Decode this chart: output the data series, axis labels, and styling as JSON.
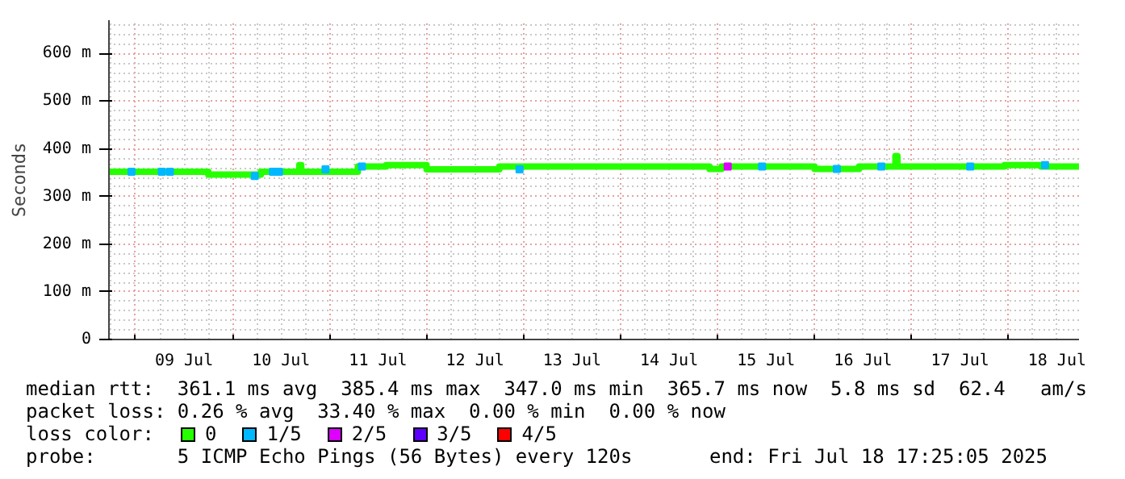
{
  "chart_data": {
    "type": "step",
    "ylabel": "Seconds",
    "legend_title": "loss color:",
    "legend": "bottom",
    "grid": true,
    "xlim": [
      "2025-07-08T17:25",
      "2025-07-18T17:25"
    ],
    "xticks": [
      {
        "value": "2025-07-09T12:00",
        "label": "09 Jul"
      },
      {
        "value": "2025-07-10T12:00",
        "label": "10 Jul"
      },
      {
        "value": "2025-07-11T12:00",
        "label": "11 Jul"
      },
      {
        "value": "2025-07-12T12:00",
        "label": "12 Jul"
      },
      {
        "value": "2025-07-13T12:00",
        "label": "13 Jul"
      },
      {
        "value": "2025-07-14T12:00",
        "label": "14 Jul"
      },
      {
        "value": "2025-07-15T12:00",
        "label": "15 Jul"
      },
      {
        "value": "2025-07-16T12:00",
        "label": "16 Jul"
      },
      {
        "value": "2025-07-17T12:00",
        "label": "17 Jul"
      },
      {
        "value": "2025-07-18T12:00",
        "label": "18 Jul"
      }
    ],
    "ylim": [
      0,
      670
    ],
    "yticks": [
      0,
      {
        "value": 100,
        "label": "100 m"
      },
      {
        "value": 200,
        "label": "200 m"
      },
      {
        "value": 300,
        "label": "300 m"
      },
      {
        "value": 400,
        "label": "400 m"
      },
      {
        "value": 500,
        "label": "500 m"
      },
      {
        "value": 600,
        "label": "600 m"
      }
    ],
    "series": [
      {
        "name": "0",
        "color": "#26ff00",
        "x": [
          "2025-07-08T17:25",
          "2025-07-09T18:00",
          "2025-07-10T07:00",
          "2025-07-10T16:30",
          "2025-07-10T17:00",
          "2025-07-11T07:00",
          "2025-07-11T14:00",
          "2025-07-12T00:00",
          "2025-07-12T18:00",
          "2025-07-14T22:00",
          "2025-07-15T01:00",
          "2025-07-16T00:00",
          "2025-07-16T11:00",
          "2025-07-16T20:00",
          "2025-07-16T20:30",
          "2025-07-17T23:00",
          "2025-07-18T08:00",
          "2025-07-18T17:25"
        ],
        "values": [
          352,
          346,
          352,
          366,
          352,
          363,
          366,
          357,
          363,
          358,
          363,
          358,
          363,
          385,
          363,
          366,
          363,
          363
        ]
      },
      {
        "name": "1/5",
        "type": "scatter",
        "marker": "square",
        "color": "#00b8ff",
        "x": [
          "2025-07-08T23:00",
          "2025-07-09T06:30",
          "2025-07-09T08:30",
          "2025-07-10T05:30",
          "2025-07-10T10:00",
          "2025-07-10T11:30",
          "2025-07-10T23:00",
          "2025-07-11T08:00",
          "2025-07-12T23:00",
          "2025-07-15T11:00",
          "2025-07-16T05:30",
          "2025-07-16T16:30",
          "2025-07-17T14:30",
          "2025-07-18T09:00"
        ],
        "values": [
          352,
          352,
          352,
          343,
          352,
          352,
          357,
          363,
          357,
          363,
          358,
          363,
          363,
          366
        ]
      },
      {
        "name": "2/5",
        "type": "scatter",
        "marker": "square",
        "color": "#dd00ff",
        "x": [
          "2025-07-15T02:30"
        ],
        "values": [
          363
        ]
      },
      {
        "name": "3/5",
        "type": "scatter",
        "marker": "square",
        "color": "#5e00ff"
      },
      {
        "name": "4/5",
        "type": "scatter",
        "marker": "square",
        "color": "#ff0000"
      }
    ],
    "annotations": [
      "median rtt:  361.1 ms avg  385.4 ms max  347.0 ms min  365.7 ms now  5.8 ms sd  62.4   am/s",
      "packet loss: 0.26 % avg  33.40 % max  0.00 % min  0.00 % now",
      "probe:       5 ICMP Echo Pings (56 Bytes) every 120s",
      "end: Fri Jul 18 17:25:05 2025"
    ]
  }
}
